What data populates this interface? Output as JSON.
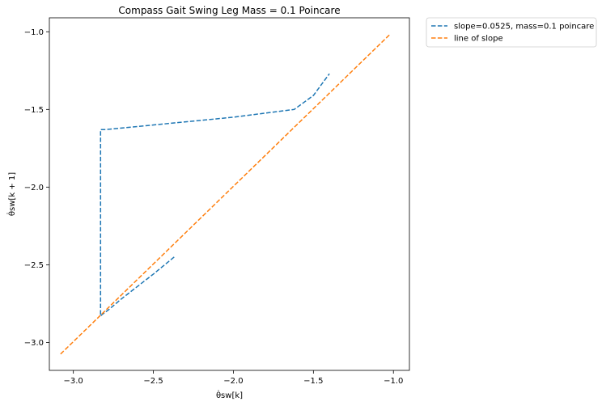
{
  "chart_data": {
    "type": "line",
    "title": "Compass Gait Swing Leg Mass = 0.1 Poincare",
    "xlabel": "θ̇sw[k]",
    "ylabel": "θ̇sw[k + 1]",
    "xlim": [
      -3.15,
      -0.9
    ],
    "ylim": [
      -3.18,
      -0.91
    ],
    "xticks": [
      -3.0,
      -2.5,
      -2.0,
      -1.5,
      -1.0
    ],
    "xtick_labels": [
      "−3.0",
      "−2.5",
      "−2.0",
      "−1.5",
      "−1.0"
    ],
    "yticks": [
      -3.0,
      -2.5,
      -2.0,
      -1.5,
      -1.0
    ],
    "ytick_labels": [
      "−3.0",
      "−2.5",
      "−2.0",
      "−1.5",
      "−1.0"
    ],
    "grid": false,
    "legend_position": "outside-top-right",
    "series": [
      {
        "name": "slope=0.0525, mass=0.1 poincare",
        "color": "#1f77b4",
        "style": "dashed",
        "x": [
          -2.37,
          -2.5,
          -2.6,
          -2.7,
          -2.78,
          -2.82,
          -2.83,
          -2.83,
          -2.8,
          -2.0,
          -1.62,
          -1.5,
          -1.4
        ],
        "y": [
          -2.45,
          -2.56,
          -2.64,
          -2.72,
          -2.79,
          -2.82,
          -2.83,
          -1.63,
          -1.63,
          -1.55,
          -1.5,
          -1.41,
          -1.27
        ]
      },
      {
        "name": "line of slope",
        "color": "#ff7f0e",
        "style": "dashed",
        "x": [
          -3.08,
          -1.02
        ],
        "y": [
          -3.075,
          -1.015
        ]
      }
    ]
  }
}
